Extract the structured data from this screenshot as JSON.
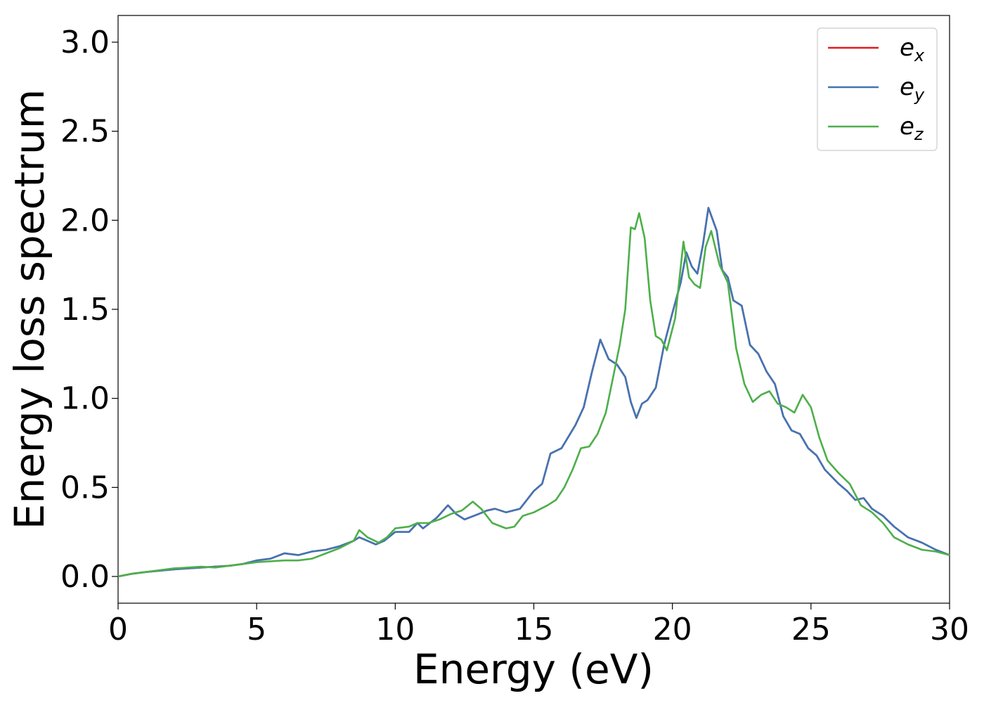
{
  "chart_data": {
    "type": "line",
    "title": "",
    "xlabel": "Energy (eV)",
    "ylabel": "Energy loss spectrum",
    "xlim": [
      0,
      30
    ],
    "ylim": [
      -0.15,
      3.15
    ],
    "xticks": [
      0,
      5,
      10,
      15,
      20,
      25,
      30
    ],
    "xtick_labels": [
      "0",
      "5",
      "10",
      "15",
      "20",
      "25",
      "30"
    ],
    "yticks": [
      0.0,
      0.5,
      1.0,
      1.5,
      2.0,
      2.5,
      3.0
    ],
    "ytick_labels": [
      "0.0",
      "0.5",
      "1.0",
      "1.5",
      "2.0",
      "2.5",
      "3.0"
    ],
    "grid": false,
    "legend_position": "top-right",
    "series": [
      {
        "name": "e_x",
        "legend_main": "e",
        "legend_sub": "x",
        "color": "#e41a1c",
        "points": [
          [
            0,
            0.0
          ],
          [
            0.5,
            0.015
          ],
          [
            1,
            0.025
          ],
          [
            2,
            0.04
          ],
          [
            3,
            0.05
          ],
          [
            4,
            0.06
          ],
          [
            4.5,
            0.07
          ],
          [
            5,
            0.09
          ],
          [
            5.5,
            0.1
          ],
          [
            6,
            0.13
          ],
          [
            6.5,
            0.12
          ],
          [
            7,
            0.14
          ],
          [
            7.5,
            0.15
          ],
          [
            8,
            0.17
          ],
          [
            8.5,
            0.2
          ],
          [
            8.7,
            0.22
          ],
          [
            9,
            0.2
          ],
          [
            9.3,
            0.18
          ],
          [
            9.6,
            0.2
          ],
          [
            10,
            0.25
          ],
          [
            10.5,
            0.25
          ],
          [
            10.8,
            0.3
          ],
          [
            11,
            0.27
          ],
          [
            11.5,
            0.33
          ],
          [
            11.9,
            0.4
          ],
          [
            12.2,
            0.35
          ],
          [
            12.5,
            0.32
          ],
          [
            13,
            0.35
          ],
          [
            13.3,
            0.37
          ],
          [
            13.6,
            0.38
          ],
          [
            14,
            0.36
          ],
          [
            14.5,
            0.38
          ],
          [
            15,
            0.48
          ],
          [
            15.3,
            0.52
          ],
          [
            15.6,
            0.69
          ],
          [
            16,
            0.72
          ],
          [
            16.5,
            0.85
          ],
          [
            16.8,
            0.95
          ],
          [
            17.1,
            1.15
          ],
          [
            17.4,
            1.33
          ],
          [
            17.7,
            1.22
          ],
          [
            18,
            1.19
          ],
          [
            18.3,
            1.12
          ],
          [
            18.5,
            0.98
          ],
          [
            18.7,
            0.89
          ],
          [
            18.9,
            0.97
          ],
          [
            19.1,
            0.99
          ],
          [
            19.4,
            1.06
          ],
          [
            19.7,
            1.3
          ],
          [
            20,
            1.48
          ],
          [
            20.3,
            1.65
          ],
          [
            20.5,
            1.82
          ],
          [
            20.7,
            1.74
          ],
          [
            20.9,
            1.7
          ],
          [
            21.1,
            1.86
          ],
          [
            21.3,
            2.07
          ],
          [
            21.6,
            1.94
          ],
          [
            21.8,
            1.72
          ],
          [
            22,
            1.68
          ],
          [
            22.2,
            1.55
          ],
          [
            22.5,
            1.52
          ],
          [
            22.8,
            1.3
          ],
          [
            23.1,
            1.25
          ],
          [
            23.4,
            1.15
          ],
          [
            23.7,
            1.08
          ],
          [
            24,
            0.9
          ],
          [
            24.3,
            0.82
          ],
          [
            24.6,
            0.8
          ],
          [
            24.9,
            0.72
          ],
          [
            25.2,
            0.68
          ],
          [
            25.5,
            0.6
          ],
          [
            26,
            0.52
          ],
          [
            26.3,
            0.48
          ],
          [
            26.6,
            0.43
          ],
          [
            26.9,
            0.44
          ],
          [
            27.2,
            0.38
          ],
          [
            27.6,
            0.34
          ],
          [
            28,
            0.28
          ],
          [
            28.5,
            0.22
          ],
          [
            29,
            0.19
          ],
          [
            29.5,
            0.15
          ],
          [
            30,
            0.12
          ]
        ]
      },
      {
        "name": "e_y",
        "legend_main": "e",
        "legend_sub": "y",
        "color": "#3f76b6",
        "points": [
          [
            0,
            0.0
          ],
          [
            0.5,
            0.015
          ],
          [
            1,
            0.025
          ],
          [
            2,
            0.04
          ],
          [
            3,
            0.05
          ],
          [
            4,
            0.06
          ],
          [
            4.5,
            0.07
          ],
          [
            5,
            0.09
          ],
          [
            5.5,
            0.1
          ],
          [
            6,
            0.13
          ],
          [
            6.5,
            0.12
          ],
          [
            7,
            0.14
          ],
          [
            7.5,
            0.15
          ],
          [
            8,
            0.17
          ],
          [
            8.5,
            0.2
          ],
          [
            8.7,
            0.22
          ],
          [
            9,
            0.2
          ],
          [
            9.3,
            0.18
          ],
          [
            9.6,
            0.2
          ],
          [
            10,
            0.25
          ],
          [
            10.5,
            0.25
          ],
          [
            10.8,
            0.3
          ],
          [
            11,
            0.27
          ],
          [
            11.5,
            0.33
          ],
          [
            11.9,
            0.4
          ],
          [
            12.2,
            0.35
          ],
          [
            12.5,
            0.32
          ],
          [
            13,
            0.35
          ],
          [
            13.3,
            0.37
          ],
          [
            13.6,
            0.38
          ],
          [
            14,
            0.36
          ],
          [
            14.5,
            0.38
          ],
          [
            15,
            0.48
          ],
          [
            15.3,
            0.52
          ],
          [
            15.6,
            0.69
          ],
          [
            16,
            0.72
          ],
          [
            16.5,
            0.85
          ],
          [
            16.8,
            0.95
          ],
          [
            17.1,
            1.15
          ],
          [
            17.4,
            1.33
          ],
          [
            17.7,
            1.22
          ],
          [
            18,
            1.19
          ],
          [
            18.3,
            1.12
          ],
          [
            18.5,
            0.98
          ],
          [
            18.7,
            0.89
          ],
          [
            18.9,
            0.97
          ],
          [
            19.1,
            0.99
          ],
          [
            19.4,
            1.06
          ],
          [
            19.7,
            1.3
          ],
          [
            20,
            1.48
          ],
          [
            20.3,
            1.65
          ],
          [
            20.5,
            1.82
          ],
          [
            20.7,
            1.74
          ],
          [
            20.9,
            1.7
          ],
          [
            21.1,
            1.86
          ],
          [
            21.3,
            2.07
          ],
          [
            21.6,
            1.94
          ],
          [
            21.8,
            1.72
          ],
          [
            22,
            1.68
          ],
          [
            22.2,
            1.55
          ],
          [
            22.5,
            1.52
          ],
          [
            22.8,
            1.3
          ],
          [
            23.1,
            1.25
          ],
          [
            23.4,
            1.15
          ],
          [
            23.7,
            1.08
          ],
          [
            24,
            0.9
          ],
          [
            24.3,
            0.82
          ],
          [
            24.6,
            0.8
          ],
          [
            24.9,
            0.72
          ],
          [
            25.2,
            0.68
          ],
          [
            25.5,
            0.6
          ],
          [
            26,
            0.52
          ],
          [
            26.3,
            0.48
          ],
          [
            26.6,
            0.43
          ],
          [
            26.9,
            0.44
          ],
          [
            27.2,
            0.38
          ],
          [
            27.6,
            0.34
          ],
          [
            28,
            0.28
          ],
          [
            28.5,
            0.22
          ],
          [
            29,
            0.19
          ],
          [
            29.5,
            0.15
          ],
          [
            30,
            0.12
          ]
        ]
      },
      {
        "name": "e_z",
        "legend_main": "e",
        "legend_sub": "z",
        "color": "#4daf4a",
        "points": [
          [
            0,
            0.0
          ],
          [
            0.5,
            0.015
          ],
          [
            1,
            0.025
          ],
          [
            2,
            0.045
          ],
          [
            3,
            0.055
          ],
          [
            3.5,
            0.05
          ],
          [
            4,
            0.06
          ],
          [
            4.5,
            0.07
          ],
          [
            5,
            0.08
          ],
          [
            6,
            0.09
          ],
          [
            6.5,
            0.09
          ],
          [
            7,
            0.1
          ],
          [
            7.5,
            0.13
          ],
          [
            8,
            0.16
          ],
          [
            8.5,
            0.2
          ],
          [
            8.7,
            0.26
          ],
          [
            9,
            0.22
          ],
          [
            9.4,
            0.19
          ],
          [
            9.7,
            0.22
          ],
          [
            10,
            0.27
          ],
          [
            10.5,
            0.28
          ],
          [
            10.8,
            0.3
          ],
          [
            11.2,
            0.3
          ],
          [
            11.6,
            0.32
          ],
          [
            12,
            0.35
          ],
          [
            12.4,
            0.37
          ],
          [
            12.8,
            0.42
          ],
          [
            13.1,
            0.38
          ],
          [
            13.5,
            0.3
          ],
          [
            14,
            0.27
          ],
          [
            14.3,
            0.28
          ],
          [
            14.6,
            0.34
          ],
          [
            15,
            0.36
          ],
          [
            15.5,
            0.4
          ],
          [
            15.8,
            0.43
          ],
          [
            16.1,
            0.5
          ],
          [
            16.4,
            0.6
          ],
          [
            16.7,
            0.72
          ],
          [
            17,
            0.73
          ],
          [
            17.3,
            0.8
          ],
          [
            17.6,
            0.92
          ],
          [
            17.9,
            1.15
          ],
          [
            18.1,
            1.3
          ],
          [
            18.3,
            1.5
          ],
          [
            18.5,
            1.96
          ],
          [
            18.65,
            1.95
          ],
          [
            18.8,
            2.04
          ],
          [
            19,
            1.9
          ],
          [
            19.2,
            1.55
          ],
          [
            19.4,
            1.35
          ],
          [
            19.6,
            1.33
          ],
          [
            19.8,
            1.27
          ],
          [
            20.1,
            1.45
          ],
          [
            20.4,
            1.88
          ],
          [
            20.6,
            1.68
          ],
          [
            20.8,
            1.64
          ],
          [
            21,
            1.62
          ],
          [
            21.2,
            1.85
          ],
          [
            21.4,
            1.94
          ],
          [
            21.7,
            1.75
          ],
          [
            22,
            1.65
          ],
          [
            22.3,
            1.28
          ],
          [
            22.6,
            1.08
          ],
          [
            22.9,
            0.98
          ],
          [
            23.2,
            1.02
          ],
          [
            23.5,
            1.04
          ],
          [
            23.8,
            0.97
          ],
          [
            24.1,
            0.95
          ],
          [
            24.4,
            0.92
          ],
          [
            24.7,
            1.02
          ],
          [
            25,
            0.95
          ],
          [
            25.3,
            0.78
          ],
          [
            25.6,
            0.65
          ],
          [
            26,
            0.58
          ],
          [
            26.4,
            0.52
          ],
          [
            26.8,
            0.4
          ],
          [
            27.2,
            0.36
          ],
          [
            27.6,
            0.3
          ],
          [
            28,
            0.22
          ],
          [
            28.5,
            0.18
          ],
          [
            29,
            0.15
          ],
          [
            29.5,
            0.14
          ],
          [
            30,
            0.12
          ]
        ]
      }
    ]
  }
}
